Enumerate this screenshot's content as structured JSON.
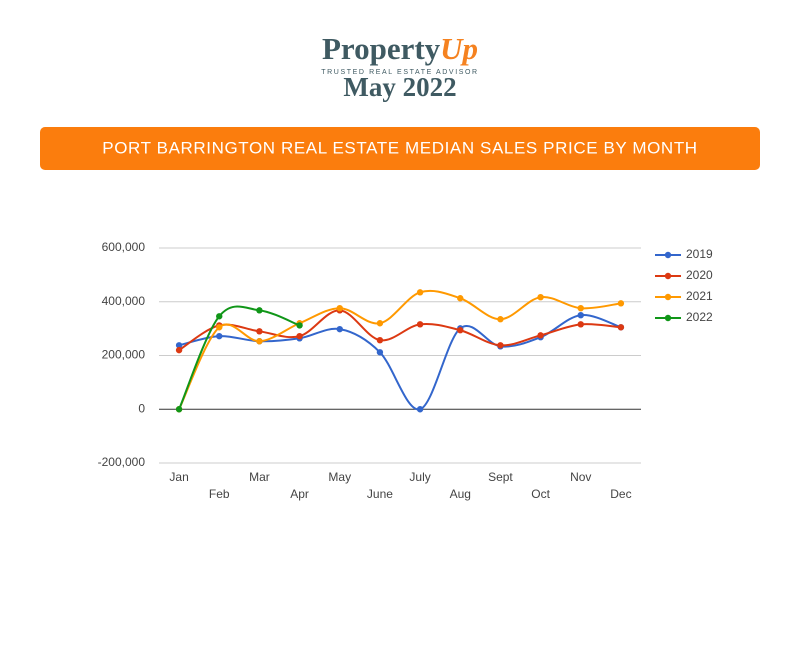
{
  "header": {
    "brand": "Property",
    "brand_accent": "Up",
    "tagline": "TRUSTED REAL ESTATE ADVISOR",
    "issue": "May 2022"
  },
  "chart_data": {
    "type": "line",
    "title": "PORT BARRINGTON REAL ESTATE MEDIAN SALES PRICE BY MONTH",
    "categories": [
      "Jan",
      "Feb",
      "Mar",
      "Apr",
      "May",
      "June",
      "July",
      "Aug",
      "Sept",
      "Oct",
      "Nov",
      "Dec"
    ],
    "series": [
      {
        "name": "2019",
        "color": "#3366cc",
        "values": [
          238000,
          272000,
          253000,
          264000,
          298000,
          212000,
          0,
          301000,
          234000,
          268000,
          350000,
          305000
        ]
      },
      {
        "name": "2020",
        "color": "#dc3912",
        "values": [
          220000,
          312000,
          290000,
          272000,
          368000,
          257000,
          316000,
          294000,
          238000,
          275000,
          316000,
          305000
        ]
      },
      {
        "name": "2021",
        "color": "#ff9900",
        "values": [
          0,
          305000,
          253000,
          320000,
          376000,
          320000,
          435000,
          413000,
          335000,
          417000,
          376000,
          394000
        ]
      },
      {
        "name": "2022",
        "color": "#109618",
        "values": [
          0,
          346000,
          368000,
          312000,
          null,
          null,
          null,
          null,
          null,
          null,
          null,
          null
        ]
      }
    ],
    "ylim": [
      -200000,
      600000
    ],
    "yticks": [
      {
        "value": -200000,
        "label": "-200,000"
      },
      0,
      {
        "value": 200000,
        "label": "200,000"
      },
      {
        "value": 400000,
        "label": "400,000"
      },
      {
        "value": 600000,
        "label": "600,000"
      }
    ],
    "grid": true,
    "legend": "right",
    "smooth": true
  }
}
